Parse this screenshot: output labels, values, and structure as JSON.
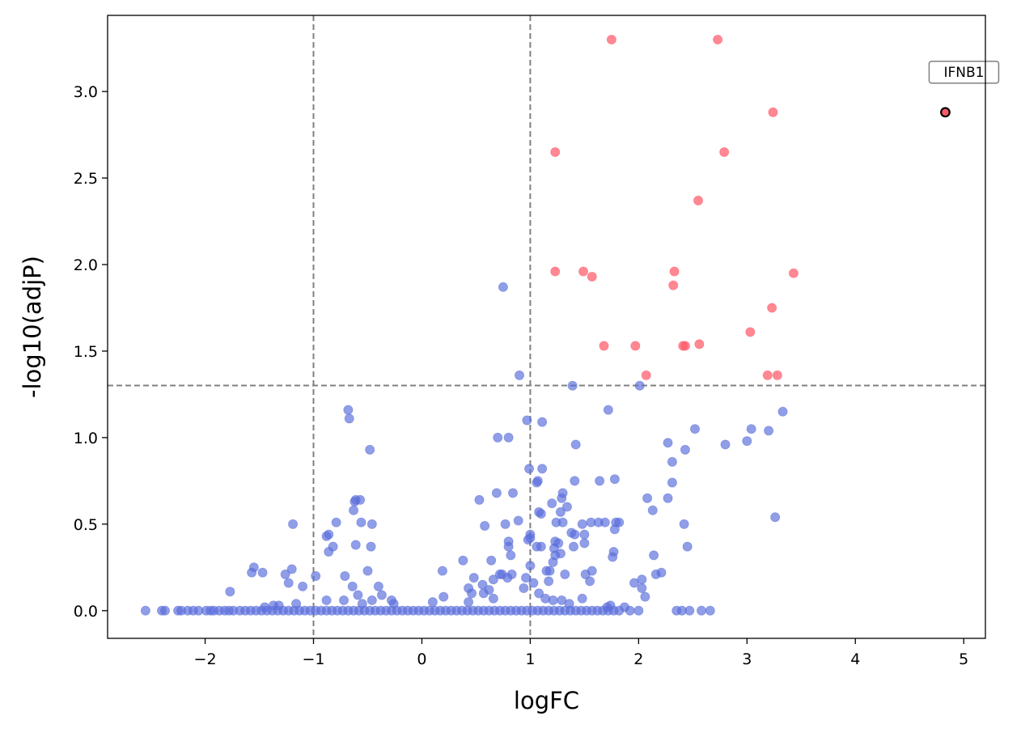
{
  "chart_data": {
    "type": "scatter",
    "title": "",
    "xlabel": "logFC",
    "ylabel": "-log10(adjP)",
    "xlim": [
      -2.9,
      5.2
    ],
    "ylim": [
      -0.16,
      3.44
    ],
    "xticks": [
      -2,
      -1,
      0,
      1,
      2,
      3,
      4,
      5
    ],
    "xtick_labels": [
      "−2",
      "−1",
      "0",
      "1",
      "2",
      "3",
      "4",
      "5"
    ],
    "yticks": [
      0.0,
      0.5,
      1.0,
      1.5,
      2.0,
      2.5,
      3.0
    ],
    "ytick_labels": [
      "0.0",
      "0.5",
      "1.0",
      "1.5",
      "2.0",
      "2.5",
      "3.0"
    ],
    "thresholds": {
      "logfc": [
        -1,
        1
      ],
      "neg_log10_adjp": 1.301
    },
    "colors": {
      "not_significant": "#5b6fdc",
      "significant": "#ff5a6a",
      "highlight_edge": "#000000",
      "threshold_line": "#808080"
    },
    "annotation": {
      "label": "IFNB1",
      "x": 4.83,
      "y": 2.88
    },
    "series": [
      {
        "name": "significant",
        "points": [
          [
            1.75,
            3.3
          ],
          [
            2.73,
            3.3
          ],
          [
            3.24,
            2.88
          ],
          [
            1.23,
            2.65
          ],
          [
            2.79,
            2.65
          ],
          [
            2.55,
            2.37
          ],
          [
            1.23,
            1.96
          ],
          [
            1.49,
            1.96
          ],
          [
            2.33,
            1.96
          ],
          [
            3.43,
            1.95
          ],
          [
            1.57,
            1.93
          ],
          [
            2.32,
            1.88
          ],
          [
            3.23,
            1.75
          ],
          [
            3.03,
            1.61
          ],
          [
            1.68,
            1.53
          ],
          [
            1.97,
            1.53
          ],
          [
            2.41,
            1.53
          ],
          [
            2.43,
            1.53
          ],
          [
            2.56,
            1.54
          ],
          [
            2.07,
            1.36
          ],
          [
            3.19,
            1.36
          ],
          [
            3.28,
            1.36
          ],
          [
            4.83,
            2.88
          ]
        ]
      },
      {
        "name": "not_significant",
        "points": [
          [
            0.75,
            1.87
          ],
          [
            0.9,
            1.36
          ],
          [
            1.39,
            1.3
          ],
          [
            2.01,
            1.3
          ],
          [
            -0.68,
            1.16
          ],
          [
            -0.67,
            1.11
          ],
          [
            -0.48,
            0.93
          ],
          [
            0.7,
            1.0
          ],
          [
            0.8,
            1.0
          ],
          [
            0.97,
            1.1
          ],
          [
            1.11,
            1.09
          ],
          [
            1.42,
            0.96
          ],
          [
            1.72,
            1.16
          ],
          [
            2.27,
            0.97
          ],
          [
            2.43,
            0.93
          ],
          [
            2.52,
            1.05
          ],
          [
            2.8,
            0.96
          ],
          [
            3.0,
            0.98
          ],
          [
            3.04,
            1.05
          ],
          [
            3.2,
            1.04
          ],
          [
            3.33,
            1.15
          ],
          [
            2.31,
            0.86
          ],
          [
            -0.61,
            0.64
          ],
          [
            -0.62,
            0.63
          ],
          [
            -0.57,
            0.64
          ],
          [
            -0.63,
            0.58
          ],
          [
            -0.56,
            0.51
          ],
          [
            -0.46,
            0.5
          ],
          [
            -0.79,
            0.51
          ],
          [
            -0.86,
            0.44
          ],
          [
            -0.88,
            0.43
          ],
          [
            -1.19,
            0.5
          ],
          [
            -0.86,
            0.34
          ],
          [
            -0.82,
            0.37
          ],
          [
            -0.61,
            0.38
          ],
          [
            -0.47,
            0.37
          ],
          [
            -0.71,
            0.2
          ],
          [
            -0.64,
            0.14
          ],
          [
            -0.5,
            0.23
          ],
          [
            -0.4,
            0.14
          ],
          [
            -0.59,
            0.09
          ],
          [
            -0.37,
            0.09
          ],
          [
            -0.98,
            0.2
          ],
          [
            -1.1,
            0.14
          ],
          [
            -1.23,
            0.16
          ],
          [
            -1.26,
            0.21
          ],
          [
            -1.2,
            0.24
          ],
          [
            -1.47,
            0.22
          ],
          [
            -1.55,
            0.25
          ],
          [
            -1.57,
            0.22
          ],
          [
            -1.77,
            0.11
          ],
          [
            0.53,
            0.64
          ],
          [
            0.69,
            0.68
          ],
          [
            0.84,
            0.68
          ],
          [
            0.89,
            0.52
          ],
          [
            0.77,
            0.5
          ],
          [
            0.58,
            0.49
          ],
          [
            0.8,
            0.4
          ],
          [
            0.8,
            0.37
          ],
          [
            0.82,
            0.32
          ],
          [
            0.64,
            0.29
          ],
          [
            0.38,
            0.29
          ],
          [
            0.19,
            0.23
          ],
          [
            0.48,
            0.19
          ],
          [
            0.56,
            0.15
          ],
          [
            0.66,
            0.18
          ],
          [
            0.72,
            0.21
          ],
          [
            0.74,
            0.21
          ],
          [
            0.79,
            0.19
          ],
          [
            0.83,
            0.21
          ],
          [
            0.96,
            0.19
          ],
          [
            1.0,
            0.26
          ],
          [
            1.0,
            0.42
          ],
          [
            0.98,
            0.41
          ],
          [
            1.0,
            0.44
          ],
          [
            1.08,
            0.57
          ],
          [
            1.06,
            0.74
          ],
          [
            1.07,
            0.75
          ],
          [
            0.99,
            0.82
          ],
          [
            1.11,
            0.82
          ],
          [
            1.1,
            0.56
          ],
          [
            1.06,
            0.37
          ],
          [
            1.1,
            0.37
          ],
          [
            1.2,
            0.62
          ],
          [
            1.24,
            0.51
          ],
          [
            1.28,
            0.57
          ],
          [
            1.29,
            0.65
          ],
          [
            1.3,
            0.68
          ],
          [
            1.34,
            0.6
          ],
          [
            1.3,
            0.51
          ],
          [
            1.38,
            0.45
          ],
          [
            1.41,
            0.44
          ],
          [
            1.4,
            0.37
          ],
          [
            1.48,
            0.5
          ],
          [
            1.5,
            0.44
          ],
          [
            1.5,
            0.39
          ],
          [
            1.41,
            0.75
          ],
          [
            1.23,
            0.4
          ],
          [
            1.26,
            0.39
          ],
          [
            1.22,
            0.36
          ],
          [
            1.23,
            0.32
          ],
          [
            1.21,
            0.28
          ],
          [
            1.28,
            0.33
          ],
          [
            1.18,
            0.23
          ],
          [
            1.15,
            0.23
          ],
          [
            1.17,
            0.17
          ],
          [
            1.32,
            0.21
          ],
          [
            1.51,
            0.21
          ],
          [
            1.57,
            0.23
          ],
          [
            1.55,
            0.17
          ],
          [
            1.63,
            0.51
          ],
          [
            1.64,
            0.75
          ],
          [
            1.69,
            0.51
          ],
          [
            1.78,
            0.76
          ],
          [
            1.79,
            0.51
          ],
          [
            1.82,
            0.51
          ],
          [
            1.78,
            0.47
          ],
          [
            1.77,
            0.34
          ],
          [
            1.76,
            0.31
          ],
          [
            1.56,
            0.51
          ],
          [
            1.48,
            0.07
          ],
          [
            1.96,
            0.16
          ],
          [
            2.03,
            0.18
          ],
          [
            2.03,
            0.13
          ],
          [
            2.06,
            0.08
          ],
          [
            2.08,
            0.65
          ],
          [
            2.13,
            0.58
          ],
          [
            2.14,
            0.32
          ],
          [
            2.16,
            0.21
          ],
          [
            2.21,
            0.22
          ],
          [
            2.27,
            0.65
          ],
          [
            2.31,
            0.74
          ],
          [
            2.42,
            0.5
          ],
          [
            2.45,
            0.37
          ],
          [
            3.26,
            0.54
          ],
          [
            0.94,
            0.13
          ],
          [
            1.03,
            0.16
          ],
          [
            1.08,
            0.1
          ],
          [
            0.66,
            0.07
          ],
          [
            0.62,
            0.12
          ],
          [
            0.57,
            0.1
          ],
          [
            0.43,
            0.13
          ],
          [
            0.46,
            0.1
          ],
          [
            0.43,
            0.05
          ],
          [
            0.2,
            0.08
          ],
          [
            0.1,
            0.05
          ],
          [
            -0.26,
            0.04
          ],
          [
            -0.28,
            0.06
          ],
          [
            -0.46,
            0.06
          ],
          [
            -0.55,
            0.04
          ],
          [
            -0.72,
            0.06
          ],
          [
            -0.88,
            0.06
          ],
          [
            -1.16,
            0.04
          ],
          [
            -1.32,
            0.03
          ],
          [
            -1.37,
            0.03
          ],
          [
            -1.45,
            0.02
          ],
          [
            1.87,
            0.02
          ],
          [
            1.74,
            0.03
          ],
          [
            1.71,
            0.02
          ],
          [
            1.36,
            0.04
          ],
          [
            1.21,
            0.06
          ],
          [
            1.14,
            0.07
          ],
          [
            1.29,
            0.06
          ],
          [
            -2.55,
            0.0
          ],
          [
            -2.4,
            0.0
          ],
          [
            -2.37,
            0.0
          ],
          [
            -2.25,
            0.0
          ],
          [
            -2.22,
            0.0
          ],
          [
            -2.16,
            0.0
          ],
          [
            -2.11,
            0.0
          ],
          [
            -2.06,
            0.0
          ],
          [
            -1.99,
            0.0
          ],
          [
            -1.95,
            0.0
          ],
          [
            -1.92,
            0.0
          ],
          [
            -1.87,
            0.0
          ],
          [
            -1.82,
            0.0
          ],
          [
            -1.78,
            0.0
          ],
          [
            -1.74,
            0.0
          ],
          [
            -1.68,
            0.0
          ],
          [
            -1.63,
            0.0
          ],
          [
            -1.58,
            0.0
          ],
          [
            -1.53,
            0.0
          ],
          [
            -1.48,
            0.0
          ],
          [
            -1.43,
            0.0
          ],
          [
            -1.38,
            0.0
          ],
          [
            -1.33,
            0.0
          ],
          [
            -1.28,
            0.0
          ],
          [
            -1.23,
            0.0
          ],
          [
            -1.18,
            0.0
          ],
          [
            -1.13,
            0.0
          ],
          [
            -1.08,
            0.0
          ],
          [
            -1.03,
            0.0
          ],
          [
            -0.98,
            0.0
          ],
          [
            -0.93,
            0.0
          ],
          [
            -0.88,
            0.0
          ],
          [
            -0.83,
            0.0
          ],
          [
            -0.78,
            0.0
          ],
          [
            -0.73,
            0.0
          ],
          [
            -0.68,
            0.0
          ],
          [
            -0.63,
            0.0
          ],
          [
            -0.58,
            0.0
          ],
          [
            -0.53,
            0.0
          ],
          [
            -0.48,
            0.0
          ],
          [
            -0.43,
            0.0
          ],
          [
            -0.38,
            0.0
          ],
          [
            -0.33,
            0.0
          ],
          [
            -0.28,
            0.0
          ],
          [
            -0.23,
            0.0
          ],
          [
            -0.18,
            0.0
          ],
          [
            -0.13,
            0.0
          ],
          [
            -0.08,
            0.0
          ],
          [
            -0.03,
            0.0
          ],
          [
            0.02,
            0.0
          ],
          [
            0.07,
            0.0
          ],
          [
            0.12,
            0.0
          ],
          [
            0.17,
            0.0
          ],
          [
            0.22,
            0.0
          ],
          [
            0.27,
            0.0
          ],
          [
            0.32,
            0.0
          ],
          [
            0.37,
            0.0
          ],
          [
            0.42,
            0.0
          ],
          [
            0.47,
            0.0
          ],
          [
            0.52,
            0.0
          ],
          [
            0.57,
            0.0
          ],
          [
            0.62,
            0.0
          ],
          [
            0.67,
            0.0
          ],
          [
            0.72,
            0.0
          ],
          [
            0.77,
            0.0
          ],
          [
            0.82,
            0.0
          ],
          [
            0.87,
            0.0
          ],
          [
            0.92,
            0.0
          ],
          [
            0.97,
            0.0
          ],
          [
            1.02,
            0.0
          ],
          [
            1.07,
            0.0
          ],
          [
            1.12,
            0.0
          ],
          [
            1.17,
            0.0
          ],
          [
            1.22,
            0.0
          ],
          [
            1.27,
            0.0
          ],
          [
            1.32,
            0.0
          ],
          [
            1.37,
            0.0
          ],
          [
            1.42,
            0.0
          ],
          [
            1.47,
            0.0
          ],
          [
            1.52,
            0.0
          ],
          [
            1.57,
            0.0
          ],
          [
            1.62,
            0.0
          ],
          [
            1.67,
            0.0
          ],
          [
            1.72,
            0.0
          ],
          [
            1.77,
            0.0
          ],
          [
            1.82,
            0.0
          ],
          [
            1.92,
            0.0
          ],
          [
            2.0,
            0.0
          ],
          [
            2.35,
            0.0
          ],
          [
            2.4,
            0.0
          ],
          [
            2.47,
            0.0
          ],
          [
            2.58,
            0.0
          ],
          [
            2.66,
            0.0
          ]
        ]
      }
    ]
  }
}
